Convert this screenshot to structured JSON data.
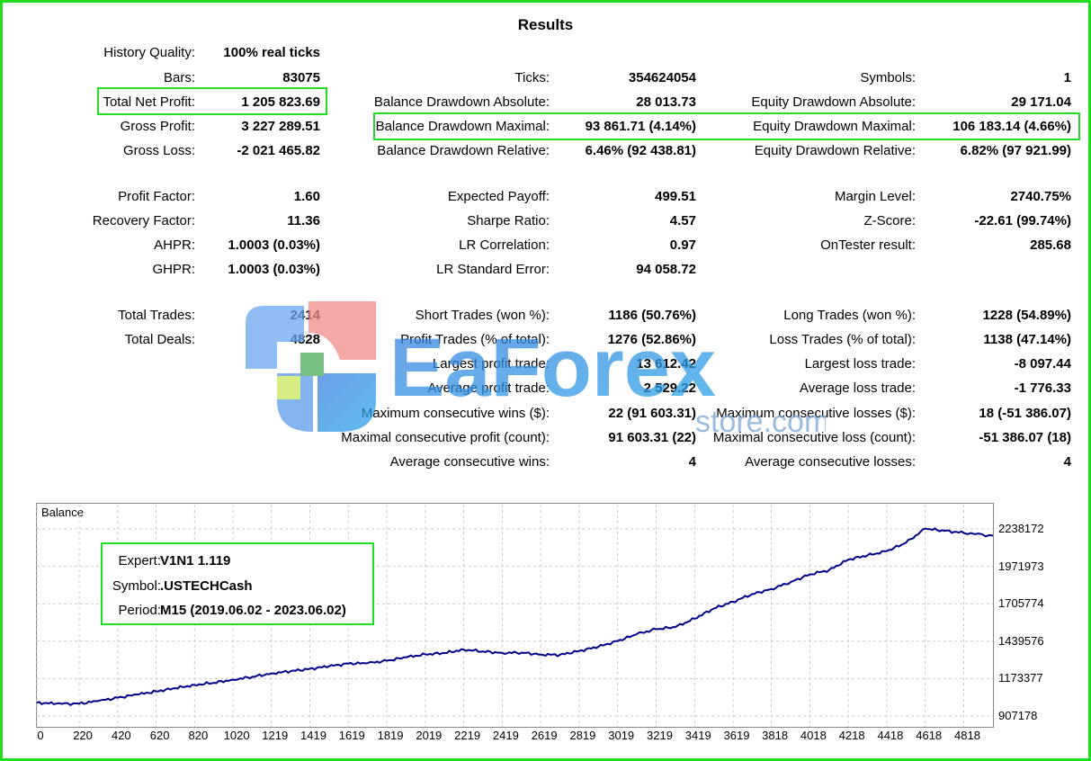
{
  "title": "Results",
  "history_quality": {
    "label": "History Quality:",
    "value": "100% real ticks"
  },
  "col1": [
    {
      "label": "Bars:",
      "value": "83075"
    },
    {
      "label": "Total Net Profit:",
      "value": "1 205 823.69"
    },
    {
      "label": "Gross Profit:",
      "value": "3 227 289.51"
    },
    {
      "label": "Gross Loss:",
      "value": "-2 021 465.82"
    },
    {
      "label": "Profit Factor:",
      "value": "1.60"
    },
    {
      "label": "Recovery Factor:",
      "value": "11.36"
    },
    {
      "label": "AHPR:",
      "value": "1.0003 (0.03%)"
    },
    {
      "label": "GHPR:",
      "value": "1.0003 (0.03%)"
    },
    {
      "label": "Total Trades:",
      "value": "2414"
    },
    {
      "label": "Total Deals:",
      "value": "4828"
    }
  ],
  "col2": [
    {
      "label": "Ticks:",
      "value": "354624054"
    },
    {
      "label": "Balance Drawdown Absolute:",
      "value": "28 013.73"
    },
    {
      "label": "Balance Drawdown Maximal:",
      "value": "93 861.71 (4.14%)"
    },
    {
      "label": "Balance Drawdown Relative:",
      "value": "6.46% (92 438.81)"
    },
    {
      "label": "Expected Payoff:",
      "value": "499.51"
    },
    {
      "label": "Sharpe Ratio:",
      "value": "4.57"
    },
    {
      "label": "LR Correlation:",
      "value": "0.97"
    },
    {
      "label": "LR Standard Error:",
      "value": "94 058.72"
    },
    {
      "label": "Short Trades (won %):",
      "value": "1186 (50.76%)"
    },
    {
      "label": "Profit Trades (% of total):",
      "value": "1276 (52.86%)"
    },
    {
      "label": "Largest profit trade:",
      "value": "13 612.42"
    },
    {
      "label": "Average profit trade:",
      "value": "2 529.22"
    },
    {
      "label": "Maximum consecutive wins ($):",
      "value": "22 (91 603.31)"
    },
    {
      "label": "Maximal consecutive profit (count):",
      "value": "91 603.31 (22)"
    },
    {
      "label": "Average consecutive wins:",
      "value": "4"
    }
  ],
  "col3": [
    {
      "label": "Symbols:",
      "value": "1"
    },
    {
      "label": "Equity Drawdown Absolute:",
      "value": "29 171.04"
    },
    {
      "label": "Equity Drawdown Maximal:",
      "value": "106 183.14 (4.66%)"
    },
    {
      "label": "Equity Drawdown Relative:",
      "value": "6.82% (97 921.99)"
    },
    {
      "label": "Margin Level:",
      "value": "2740.75%"
    },
    {
      "label": "Z-Score:",
      "value": "-22.61 (99.74%)"
    },
    {
      "label": "OnTester result:",
      "value": "285.68"
    },
    {
      "label": "Long Trades (won %):",
      "value": "1228 (54.89%)"
    },
    {
      "label": "Loss Trades (% of total):",
      "value": "1138 (47.14%)"
    },
    {
      "label": "Largest loss trade:",
      "value": "-8 097.44"
    },
    {
      "label": "Average loss trade:",
      "value": "-1 776.33"
    },
    {
      "label": "Maximum consecutive losses ($):",
      "value": "18 (-51 386.07)"
    },
    {
      "label": "Maximal consecutive loss (count):",
      "value": "-51 386.07 (18)"
    },
    {
      "label": "Average consecutive losses:",
      "value": "4"
    }
  ],
  "watermark": {
    "brand": "EaForex",
    "sub": "store.com"
  },
  "info": {
    "expert_label": "Expert:",
    "expert": "V1N1 1.119",
    "symbol_label": "Symbol:",
    "symbol": ".USTECHCash",
    "period_label": "Period:",
    "period": "M15 (2019.06.02 - 2023.06.02)"
  },
  "colors": {
    "highlight": "#22dd22",
    "line": "#00008b",
    "grid": "#cccccc"
  },
  "chart_data": {
    "type": "line",
    "title": "Balance",
    "x_ticks": [
      "0",
      "220",
      "420",
      "620",
      "820",
      "1020",
      "1219",
      "1419",
      "1619",
      "1819",
      "2019",
      "2219",
      "2419",
      "2619",
      "2819",
      "3019",
      "3219",
      "3419",
      "3619",
      "3818",
      "4018",
      "4218",
      "4418",
      "4618",
      "4818"
    ],
    "y_ticks": [
      "2238172",
      "1971973",
      "1705774",
      "1439576",
      "1173377",
      "907178"
    ],
    "xlim": [
      0,
      4970
    ],
    "ylim": [
      907178,
      2238172
    ],
    "series": [
      {
        "x": [
          0,
          100,
          220,
          320,
          420,
          520,
          620,
          720,
          820,
          920,
          1020,
          1120,
          1219,
          1319,
          1419,
          1519,
          1619,
          1719,
          1819,
          1919,
          2019,
          2119,
          2219,
          2319,
          2419,
          2519,
          2619,
          2719,
          2819,
          2919,
          3019,
          3119,
          3219,
          3319,
          3419,
          3519,
          3619,
          3719,
          3818,
          3918,
          4018,
          4118,
          4218,
          4318,
          4418,
          4518,
          4618,
          4718,
          4818,
          4970
        ],
        "y": [
          1002000,
          995000,
          995000,
          1014000,
          1037000,
          1060000,
          1082000,
          1105000,
          1128000,
          1144000,
          1166000,
          1186000,
          1210000,
          1226000,
          1243000,
          1261000,
          1280000,
          1283000,
          1300000,
          1325000,
          1346000,
          1355000,
          1380000,
          1367000,
          1356000,
          1358000,
          1345000,
          1342000,
          1370000,
          1400000,
          1440000,
          1490000,
          1525000,
          1540000,
          1600000,
          1672000,
          1720000,
          1775000,
          1810000,
          1860000,
          1915000,
          1945000,
          2020000,
          2050000,
          2080000,
          2140000,
          2240000,
          2225000,
          2210000,
          2190000
        ]
      }
    ]
  }
}
